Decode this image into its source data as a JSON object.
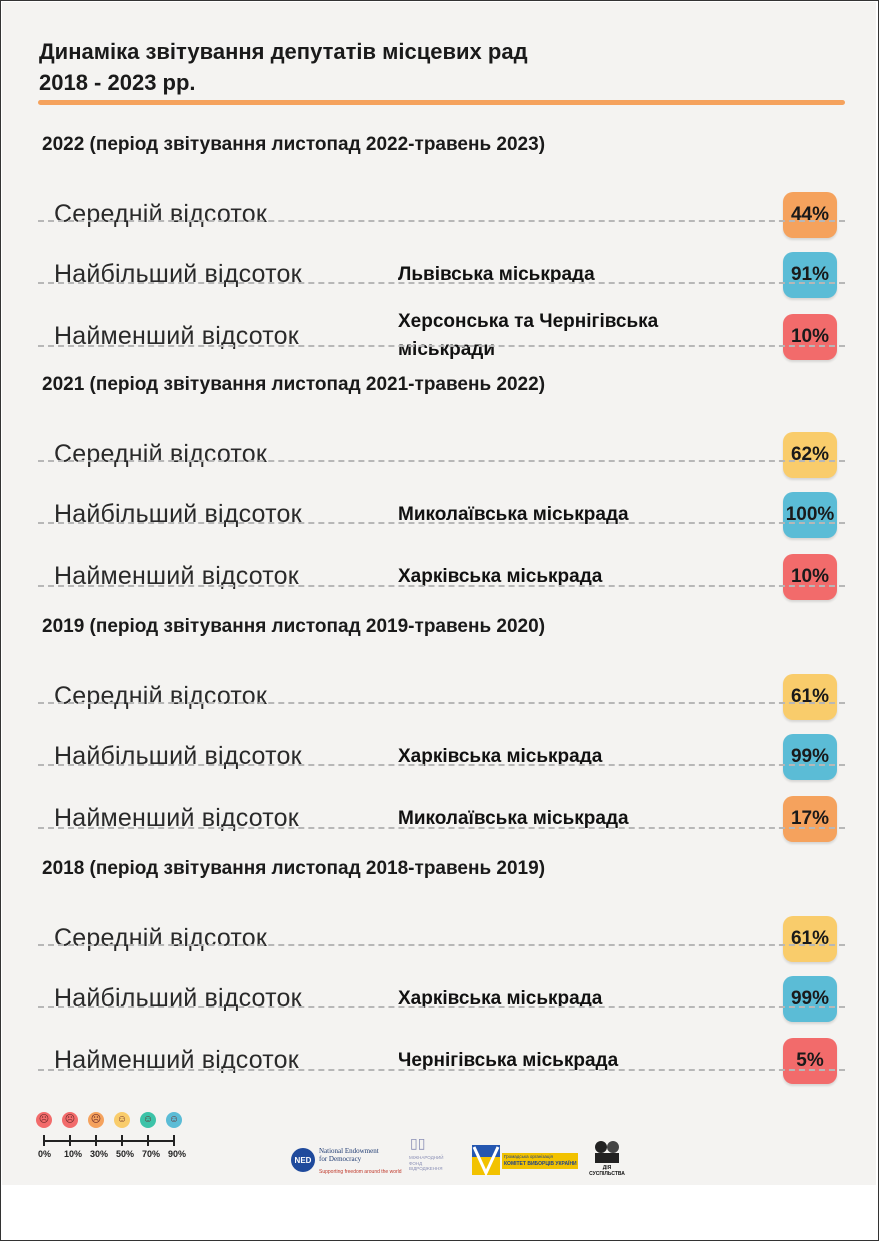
{
  "title": {
    "line1": "Динаміка звітування депутатів місцевих рад",
    "line2": "2018 - 2023 рр."
  },
  "sections": [
    {
      "heading": "2022 (період звітування листопад 2022-травень 2023)",
      "rows": [
        {
          "label": "Середній відсоток",
          "place": "",
          "value": "44%",
          "color": "#f5a25d"
        },
        {
          "label": "Найбільший відсоток",
          "place": "Львівська міськрада",
          "value": "91%",
          "color": "#5bbcd6"
        },
        {
          "label": "Найменший відсоток",
          "place": "Херсонська та Чернігівська міськради",
          "value": "10%",
          "color": "#f26b6b"
        }
      ]
    },
    {
      "heading": "2021 (період звітування листопад 2021-травень 2022)",
      "rows": [
        {
          "label": "Середній відсоток",
          "place": "",
          "value": "62%",
          "color": "#f9cc6b"
        },
        {
          "label": "Найбільший відсоток",
          "place": "Миколаївська міськрада",
          "value": "100%",
          "color": "#5bbcd6"
        },
        {
          "label": "Найменший відсоток",
          "place": "Харківська міськрада",
          "value": "10%",
          "color": "#f26b6b"
        }
      ]
    },
    {
      "heading": "2019 (період звітування листопад 2019-травень 2020)",
      "rows": [
        {
          "label": "Середній відсоток",
          "place": "",
          "value": "61%",
          "color": "#f9cc6b"
        },
        {
          "label": "Найбільший відсоток",
          "place": "Харківська міськрада",
          "value": "99%",
          "color": "#5bbcd6"
        },
        {
          "label": "Найменший відсоток",
          "place": "Миколаївська міськрада",
          "value": "17%",
          "color": "#f5a25d"
        }
      ]
    },
    {
      "heading": "2018 (період звітування листопад 2018-травень 2019)",
      "rows": [
        {
          "label": "Середній відсоток",
          "place": "",
          "value": "61%",
          "color": "#f9cc6b"
        },
        {
          "label": "Найбільший відсоток",
          "place": "Харківська міськрада",
          "value": "99%",
          "color": "#5bbcd6"
        },
        {
          "label": "Найменший відсоток",
          "place": "Чернігівська міськрада",
          "value": "5%",
          "color": "#f26b6b"
        }
      ]
    }
  ],
  "legend": {
    "faces": [
      {
        "icon": "very-sad-face-icon",
        "color": "#f26b6b"
      },
      {
        "icon": "sad-face-icon",
        "color": "#f26b6b"
      },
      {
        "icon": "worried-face-icon",
        "color": "#f5a25d"
      },
      {
        "icon": "neutral-face-icon",
        "color": "#f9cc6b"
      },
      {
        "icon": "happy-face-icon",
        "color": "#3cc3a8"
      },
      {
        "icon": "very-happy-face-icon",
        "color": "#5bbcd6"
      }
    ],
    "scale": [
      "0%",
      "10%",
      "30%",
      "50%",
      "70%",
      "90%"
    ]
  },
  "logos": {
    "ned_abbr": "NED",
    "ned_line1": "National Endowment",
    "ned_line2": "for Democracy",
    "ned_tagline": "Supporting freedom around the world",
    "fund_line1": "МІЖНАРОДНИЙ",
    "fund_line2": "ФОНД",
    "fund_line3": "ВІДРОДЖЕННЯ",
    "cvu_line1": "Громадська організація",
    "cvu_line2": "КОМІТЕТ ВИБОРЦІВ УКРАЇНИ",
    "shield_text": "ДІЯ СУСПІЛЬСТВА"
  }
}
